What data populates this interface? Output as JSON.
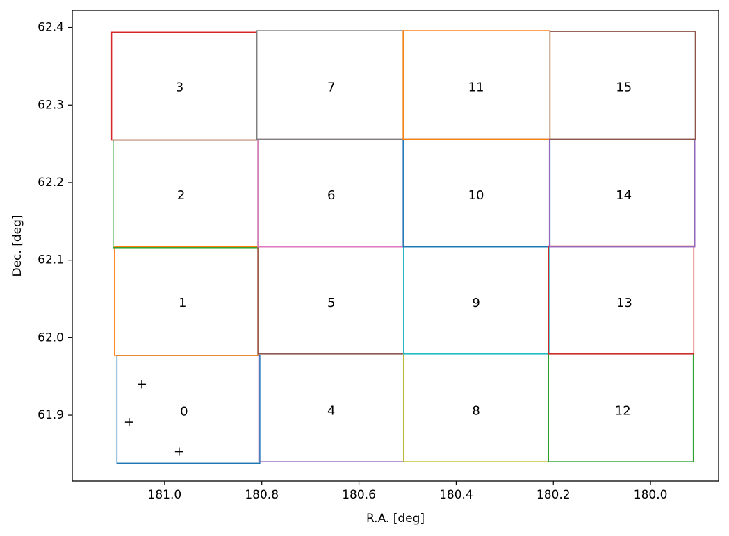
{
  "chart_data": {
    "type": "scatter",
    "title": "",
    "xlabel": "R.A. [deg]",
    "ylabel": "Dec. [deg]",
    "xlim": [
      181.19,
      179.86
    ],
    "ylim": [
      61.815,
      62.422
    ],
    "x_inverted": true,
    "grid": false,
    "x_ticks": [
      181.0,
      180.8,
      180.6,
      180.4,
      180.2,
      180.0
    ],
    "x_tick_labels": [
      "181.0",
      "180.8",
      "180.6",
      "180.4",
      "180.2",
      "180.0"
    ],
    "y_ticks": [
      61.9,
      62.0,
      62.1,
      62.2,
      62.3,
      62.4
    ],
    "y_tick_labels": [
      "61.9",
      "62.0",
      "62.1",
      "62.2",
      "62.3",
      "62.4"
    ],
    "fields": [
      {
        "label": "0",
        "color": "#1f77b4",
        "ra_min": 180.804,
        "ra_max": 181.098,
        "dec_min": 61.838,
        "dec_max": 61.977,
        "label_ra": 180.96,
        "label_dec": 61.904
      },
      {
        "label": "1",
        "color": "#ff7f0e",
        "ra_min": 180.808,
        "ra_max": 181.103,
        "dec_min": 61.977,
        "dec_max": 62.117,
        "label_ra": 180.963,
        "label_dec": 62.044
      },
      {
        "label": "2",
        "color": "#2ca02c",
        "ra_min": 180.808,
        "ra_max": 181.106,
        "dec_min": 62.116,
        "dec_max": 62.255,
        "label_ra": 180.966,
        "label_dec": 62.183
      },
      {
        "label": "3",
        "color": "#d62728",
        "ra_min": 180.811,
        "ra_max": 181.109,
        "dec_min": 62.255,
        "dec_max": 62.394,
        "label_ra": 180.969,
        "label_dec": 62.322
      },
      {
        "label": "4",
        "color": "#9467bd",
        "ra_min": 180.508,
        "ra_max": 180.806,
        "dec_min": 61.84,
        "dec_max": 61.979,
        "label_ra": 180.657,
        "label_dec": 61.905
      },
      {
        "label": "5",
        "color": "#8c564b",
        "ra_min": 180.508,
        "ra_max": 180.808,
        "dec_min": 61.979,
        "dec_max": 62.117,
        "label_ra": 180.657,
        "label_dec": 62.044
      },
      {
        "label": "6",
        "color": "#e377c2",
        "ra_min": 180.509,
        "ra_max": 180.808,
        "dec_min": 62.117,
        "dec_max": 62.256,
        "label_ra": 180.657,
        "label_dec": 62.183
      },
      {
        "label": "7",
        "color": "#7f7f7f",
        "ra_min": 180.509,
        "ra_max": 180.81,
        "dec_min": 62.256,
        "dec_max": 62.396,
        "label_ra": 180.657,
        "label_dec": 62.322
      },
      {
        "label": "8",
        "color": "#bcbd22",
        "ra_min": 180.21,
        "ra_max": 180.508,
        "dec_min": 61.84,
        "dec_max": 61.979,
        "label_ra": 180.359,
        "label_dec": 61.905
      },
      {
        "label": "9",
        "color": "#17becf",
        "ra_min": 180.209,
        "ra_max": 180.508,
        "dec_min": 61.979,
        "dec_max": 62.117,
        "label_ra": 180.359,
        "label_dec": 62.044
      },
      {
        "label": "10",
        "color": "#1f77b4",
        "ra_min": 180.207,
        "ra_max": 180.509,
        "dec_min": 62.117,
        "dec_max": 62.256,
        "label_ra": 180.359,
        "label_dec": 62.183
      },
      {
        "label": "11",
        "color": "#ff7f0e",
        "ra_min": 180.207,
        "ra_max": 180.509,
        "dec_min": 62.256,
        "dec_max": 62.396,
        "label_ra": 180.359,
        "label_dec": 62.322
      },
      {
        "label": "12",
        "color": "#2ca02c",
        "ra_min": 179.912,
        "ra_max": 180.21,
        "dec_min": 61.84,
        "dec_max": 61.979,
        "label_ra": 180.057,
        "label_dec": 61.905
      },
      {
        "label": "13",
        "color": "#d62728",
        "ra_min": 179.911,
        "ra_max": 180.21,
        "dec_min": 61.979,
        "dec_max": 62.118,
        "label_ra": 180.054,
        "label_dec": 62.044
      },
      {
        "label": "14",
        "color": "#9467bd",
        "ra_min": 179.909,
        "ra_max": 180.208,
        "dec_min": 62.117,
        "dec_max": 62.256,
        "label_ra": 180.055,
        "label_dec": 62.183
      },
      {
        "label": "15",
        "color": "#8c564b",
        "ra_min": 179.908,
        "ra_max": 180.207,
        "dec_min": 62.256,
        "dec_max": 62.395,
        "label_ra": 180.055,
        "label_dec": 62.322
      }
    ],
    "points": [
      {
        "ra": 181.047,
        "dec": 61.94
      },
      {
        "ra": 181.073,
        "dec": 61.891
      },
      {
        "ra": 180.97,
        "dec": 61.853
      }
    ]
  }
}
